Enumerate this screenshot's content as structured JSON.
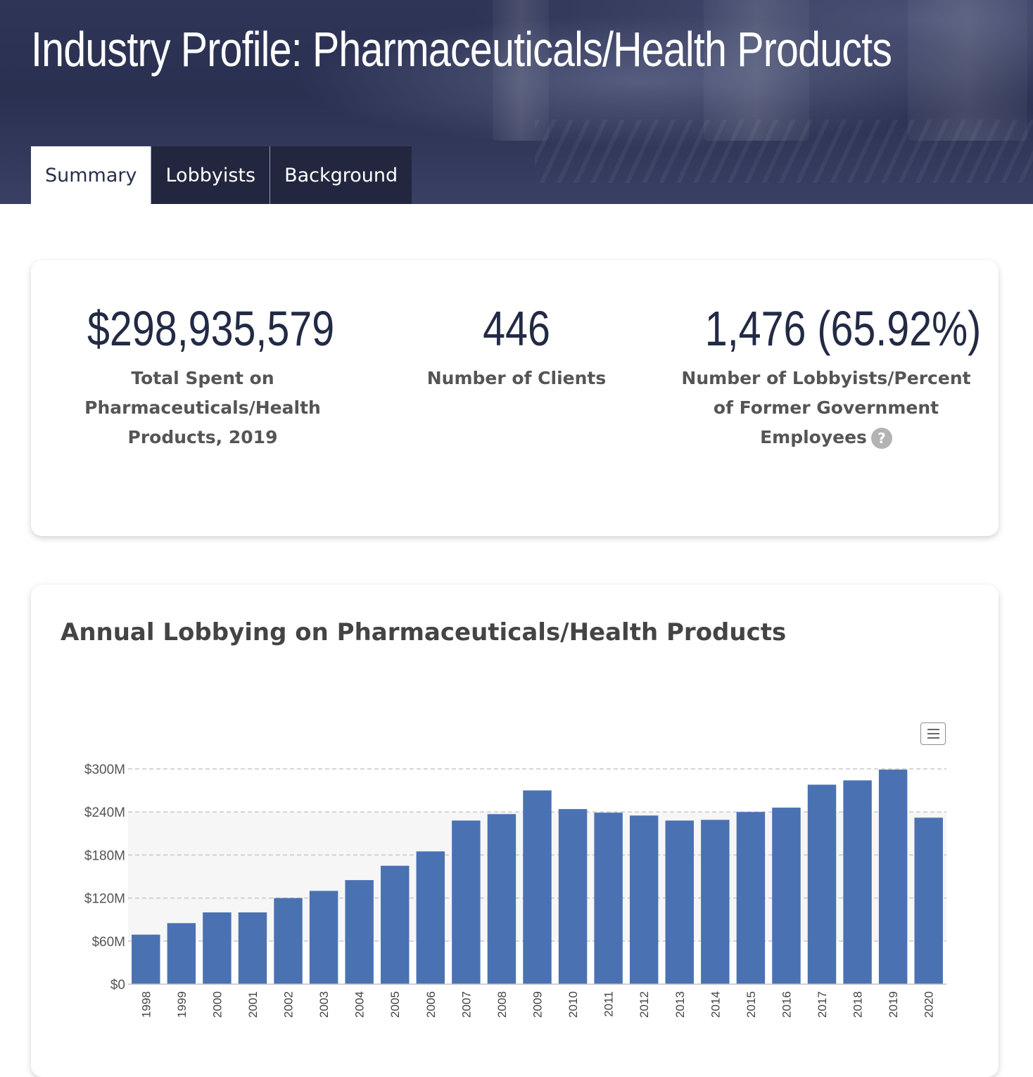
{
  "header": {
    "title": "Industry Profile: Pharmaceuticals/Health Products",
    "tabs": [
      {
        "label": "Summary",
        "active": true
      },
      {
        "label": "Lobbyists",
        "active": false
      },
      {
        "label": "Background",
        "active": false
      }
    ]
  },
  "stats": [
    {
      "value": "$298,935,579",
      "label": "Total Spent on Pharmaceuticals/Health Products, 2019"
    },
    {
      "value": "446",
      "label": "Number of Clients"
    },
    {
      "value": "1,476 (65.92%)",
      "label": "Number of Lobbyists/Percent of Former Government Employees"
    }
  ],
  "help_icon": {
    "glyph": "?",
    "icon": "question-circle-icon"
  },
  "chart_menu": {
    "icon": "hamburger-menu-icon"
  },
  "colors": {
    "bar": "#4a72b2",
    "header_bg": "#2a3050",
    "tab_bg": "#22273f"
  },
  "chart_data": {
    "type": "bar",
    "title": "Annual Lobbying on Pharmaceuticals/Health Products",
    "categories": [
      "1998",
      "1999",
      "2000",
      "2001",
      "2002",
      "2003",
      "2004",
      "2005",
      "2006",
      "2007",
      "2008",
      "2009",
      "2010",
      "2011",
      "2012",
      "2013",
      "2014",
      "2015",
      "2016",
      "2017",
      "2018",
      "2019",
      "2020"
    ],
    "values": [
      69,
      85,
      100,
      100,
      120,
      130,
      145,
      165,
      185,
      228,
      237,
      270,
      244,
      239,
      235,
      228,
      229,
      240,
      246,
      278,
      284,
      299,
      232
    ],
    "unit": "USD millions",
    "yticks": [
      "$0",
      "$60M",
      "$120M",
      "$180M",
      "$240M",
      "$300M"
    ],
    "ylim": [
      0,
      300
    ],
    "grid": true,
    "xlabel": "",
    "ylabel": ""
  }
}
